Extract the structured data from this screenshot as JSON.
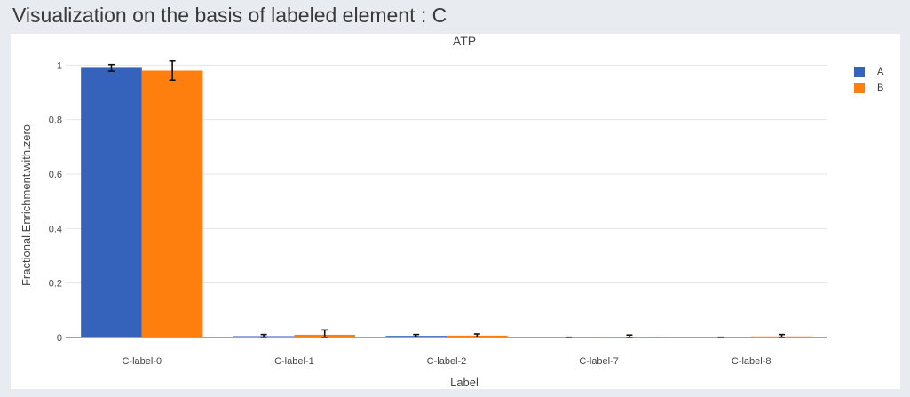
{
  "page": {
    "heading": "Visualization on the basis of labeled element : C"
  },
  "colors": {
    "A": "#3563bb",
    "B": "#ff7f0e",
    "grid": "#e6e6e6",
    "axis": "#444444"
  },
  "chart_data": {
    "type": "bar",
    "title": "ATP",
    "xlabel": "Label",
    "ylabel": "Fractional.Enrichment.with.zero",
    "categories": [
      "C-label-0",
      "C-label-1",
      "C-label-2",
      "C-label-7",
      "C-label-8"
    ],
    "ylim": [
      0,
      1.05
    ],
    "yticks": [
      0,
      0.2,
      0.4,
      0.6,
      0.8,
      1
    ],
    "ytick_labels": [
      "0",
      "0.2",
      "0.4",
      "0.6",
      "0.8",
      "1"
    ],
    "grid": true,
    "legend_position": "top-right",
    "series": [
      {
        "name": "A",
        "values": [
          0.99,
          0.005,
          0.006,
          0.0,
          0.0
        ],
        "errors": [
          0.012,
          0.006,
          0.005,
          0.001,
          0.001
        ]
      },
      {
        "name": "B",
        "values": [
          0.98,
          0.01,
          0.007,
          0.003,
          0.004
        ],
        "errors": [
          0.035,
          0.018,
          0.006,
          0.006,
          0.007
        ]
      }
    ]
  }
}
